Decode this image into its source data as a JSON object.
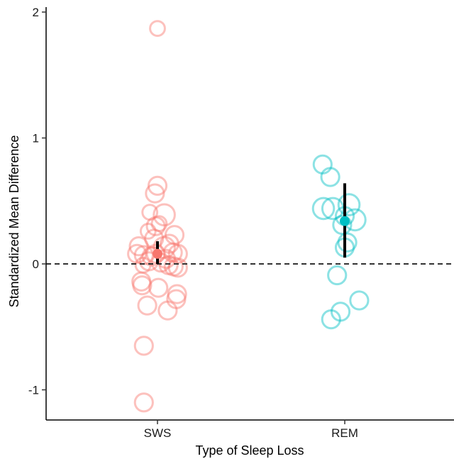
{
  "chart_data": {
    "type": "scatter",
    "title": "",
    "xlabel": "Type of Sleep Loss",
    "ylabel": "Standardized Mean Difference",
    "categories": [
      "SWS",
      "REM"
    ],
    "ylim": [
      -1.25,
      2.05
    ],
    "yticks": [
      -1,
      0,
      1,
      2
    ],
    "ytick_labels": [
      "-1",
      "0",
      "1",
      "2"
    ],
    "grid": false,
    "legend": "none",
    "reference_line": {
      "y": 0,
      "style": "dashed",
      "color": "#333333"
    },
    "series": [
      {
        "category": "SWS",
        "color": "#F8766D",
        "points": [
          {
            "offset": 0.0,
            "y": 1.87,
            "w": 2
          },
          {
            "offset": 0.0,
            "y": 0.62,
            "w": 3
          },
          {
            "offset": -0.03,
            "y": 0.56,
            "w": 3
          },
          {
            "offset": -0.09,
            "y": 0.41,
            "w": 2
          },
          {
            "offset": 0.08,
            "y": 0.39,
            "w": 4
          },
          {
            "offset": -0.02,
            "y": 0.3,
            "w": 3
          },
          {
            "offset": 0.02,
            "y": 0.32,
            "w": 2
          },
          {
            "offset": -0.11,
            "y": 0.26,
            "w": 2
          },
          {
            "offset": 0.2,
            "y": 0.23,
            "w": 3
          },
          {
            "offset": -0.04,
            "y": 0.2,
            "w": 3
          },
          {
            "offset": 0.14,
            "y": 0.16,
            "w": 3
          },
          {
            "offset": -0.22,
            "y": 0.14,
            "w": 3
          },
          {
            "offset": 0.08,
            "y": 0.13,
            "w": 4
          },
          {
            "offset": 0.18,
            "y": 0.09,
            "w": 3
          },
          {
            "offset": -0.24,
            "y": 0.08,
            "w": 3
          },
          {
            "offset": -0.16,
            "y": 0.07,
            "w": 3
          },
          {
            "offset": 0.24,
            "y": 0.08,
            "w": 3
          },
          {
            "offset": -0.07,
            "y": 0.06,
            "w": 3
          },
          {
            "offset": -0.02,
            "y": 0.08,
            "w": 3
          },
          {
            "offset": 0.1,
            "y": 0.04,
            "w": 3
          },
          {
            "offset": -0.1,
            "y": 0.02,
            "w": 3
          },
          {
            "offset": 0.04,
            "y": 0.01,
            "w": 3
          },
          {
            "offset": -0.17,
            "y": -0.01,
            "w": 2
          },
          {
            "offset": 0.13,
            "y": -0.01,
            "w": 3
          },
          {
            "offset": 0.19,
            "y": -0.02,
            "w": 3
          },
          {
            "offset": 0.24,
            "y": -0.03,
            "w": 3
          },
          {
            "offset": -0.19,
            "y": -0.14,
            "w": 3
          },
          {
            "offset": -0.18,
            "y": -0.17,
            "w": 3
          },
          {
            "offset": 0.01,
            "y": -0.19,
            "w": 3
          },
          {
            "offset": 0.23,
            "y": -0.24,
            "w": 3
          },
          {
            "offset": 0.22,
            "y": -0.28,
            "w": 3
          },
          {
            "offset": -0.12,
            "y": -0.33,
            "w": 3
          },
          {
            "offset": 0.12,
            "y": -0.37,
            "w": 3
          },
          {
            "offset": -0.16,
            "y": -0.65,
            "w": 3
          },
          {
            "offset": -0.16,
            "y": -1.1,
            "w": 3
          }
        ],
        "mean": 0.08,
        "ci": [
          0.0,
          0.18
        ]
      },
      {
        "category": "REM",
        "color": "#00BFC4",
        "points": [
          {
            "offset": -0.26,
            "y": 0.79,
            "w": 3
          },
          {
            "offset": -0.17,
            "y": 0.69,
            "w": 3
          },
          {
            "offset": 0.05,
            "y": 0.47,
            "w": 4
          },
          {
            "offset": -0.25,
            "y": 0.44,
            "w": 4
          },
          {
            "offset": -0.14,
            "y": 0.44,
            "w": 4
          },
          {
            "offset": 0.0,
            "y": 0.38,
            "w": 3
          },
          {
            "offset": 0.12,
            "y": 0.35,
            "w": 4
          },
          {
            "offset": -0.03,
            "y": 0.31,
            "w": 3
          },
          {
            "offset": 0.03,
            "y": 0.17,
            "w": 3
          },
          {
            "offset": 0.0,
            "y": 0.13,
            "w": 3
          },
          {
            "offset": -0.09,
            "y": -0.09,
            "w": 3
          },
          {
            "offset": -0.05,
            "y": -0.38,
            "w": 3
          },
          {
            "offset": -0.16,
            "y": -0.44,
            "w": 3
          },
          {
            "offset": 0.17,
            "y": -0.29,
            "w": 3
          }
        ],
        "mean": 0.34,
        "ci": [
          0.05,
          0.64
        ]
      }
    ]
  }
}
